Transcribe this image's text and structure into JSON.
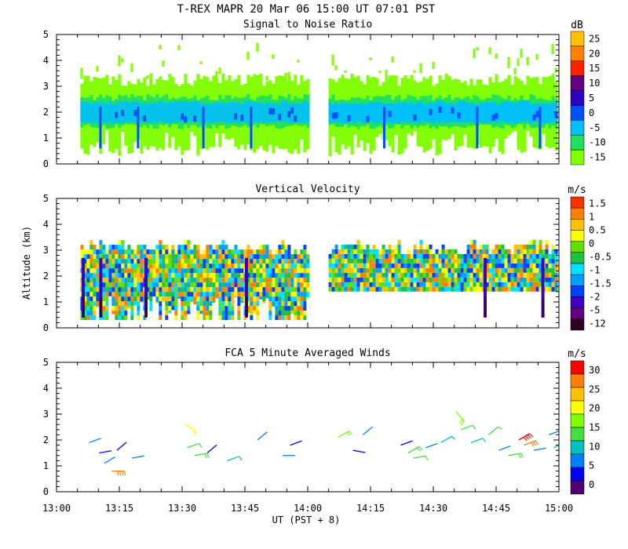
{
  "figure": {
    "title": "T-REX   MAPR 20 Mar 06   15:00 UT   07:01   PST",
    "xlabel": "UT  (PST + 8)",
    "ylabel": "Altitude (km)",
    "x_ticks": [
      "13:00",
      "13:15",
      "13:30",
      "13:45",
      "14:00",
      "14:15",
      "14:30",
      "14:45",
      "15:00"
    ],
    "x_range_hours": [
      13.0,
      15.0
    ],
    "y_ticks": [
      "0",
      "1",
      "2",
      "3",
      "4",
      "5"
    ],
    "y_range_km": [
      0,
      5
    ]
  },
  "colors": {
    "snr": [
      "#80ff00",
      "#20e060",
      "#00c0ff",
      "#0050ff",
      "#3000c0",
      "#600080",
      "#ff2000",
      "#ff8000",
      "#ffc000"
    ],
    "vv": [
      "#300020",
      "#600080",
      "#4000c0",
      "#0040ff",
      "#00a0ff",
      "#00e0ff",
      "#20c040",
      "#60e000",
      "#ffff00",
      "#ffc000",
      "#ff8000",
      "#ff3000"
    ],
    "wind": [
      "#500070",
      "#0000ff",
      "#0080ff",
      "#00c0c0",
      "#40e040",
      "#80ff00",
      "#ffff00",
      "#ffc000",
      "#ff8000",
      "#ff0000"
    ]
  },
  "chart_data": [
    {
      "type": "heatmap",
      "title": "Signal to Noise Ratio",
      "units": "dB",
      "xlim_hours": [
        13.0,
        15.0
      ],
      "ylim_km": [
        0,
        5
      ],
      "colorbar_labels": [
        "25",
        "20",
        "15",
        "10",
        "5",
        "0",
        "-5",
        "-10",
        "-15"
      ],
      "data_gap_hours": [
        14.0,
        14.083
      ],
      "layers": [
        {
          "alt_km_range": [
            0.3,
            3.4
          ],
          "value_db": -15
        },
        {
          "alt_km_range": [
            1.4,
            2.6
          ],
          "value_db": -10
        },
        {
          "alt_km_range": [
            1.6,
            2.4
          ],
          "value_db": -5
        },
        {
          "alt_km_range": [
            1.7,
            2.0
          ],
          "value_db": 0
        }
      ]
    },
    {
      "type": "heatmap",
      "title": "Vertical Velocity",
      "units": "m/s",
      "xlim_hours": [
        13.0,
        15.0
      ],
      "ylim_km": [
        0,
        5
      ],
      "colorbar_labels": [
        "1.5",
        "1",
        "0.5",
        "0",
        "-0.5",
        "-1",
        "-1.5",
        "-2",
        "-5",
        "-12"
      ],
      "data_gap_hours": [
        14.0,
        14.083
      ],
      "valid_alt_km_range": [
        0.3,
        3.2
      ],
      "downdraft_hours": [
        13.1,
        13.17,
        13.35,
        13.75,
        14.7,
        14.93
      ]
    },
    {
      "type": "scatter",
      "title": "FCA 5 Minute Averaged Winds",
      "units": "m/s",
      "xlim_hours": [
        13.0,
        15.0
      ],
      "ylim_km": [
        0,
        5
      ],
      "colorbar_labels": [
        "30",
        "25",
        "20",
        "15",
        "10",
        "5",
        "0"
      ],
      "barbs": [
        {
          "t": 13.13,
          "alt": 1.9,
          "dir": 250,
          "spd": 5
        },
        {
          "t": 13.17,
          "alt": 1.5,
          "dir": 260,
          "spd": 4
        },
        {
          "t": 13.19,
          "alt": 1.1,
          "dir": 240,
          "spd": 6
        },
        {
          "t": 13.22,
          "alt": 0.8,
          "dir": 270,
          "spd": 28
        },
        {
          "t": 13.24,
          "alt": 1.6,
          "dir": 230,
          "spd": 3
        },
        {
          "t": 13.3,
          "alt": 1.3,
          "dir": 260,
          "spd": 5
        },
        {
          "t": 13.51,
          "alt": 2.6,
          "dir": 300,
          "spd": 20
        },
        {
          "t": 13.52,
          "alt": 1.7,
          "dir": 250,
          "spd": 12
        },
        {
          "t": 13.55,
          "alt": 1.4,
          "dir": 260,
          "spd": 14
        },
        {
          "t": 13.6,
          "alt": 1.5,
          "dir": 230,
          "spd": 4
        },
        {
          "t": 13.68,
          "alt": 1.2,
          "dir": 250,
          "spd": 10
        },
        {
          "t": 13.8,
          "alt": 2.0,
          "dir": 230,
          "spd": 5
        },
        {
          "t": 13.9,
          "alt": 1.4,
          "dir": 270,
          "spd": 6
        },
        {
          "t": 13.93,
          "alt": 1.8,
          "dir": 250,
          "spd": 3
        },
        {
          "t": 14.12,
          "alt": 2.1,
          "dir": 240,
          "spd": 15
        },
        {
          "t": 14.18,
          "alt": 1.6,
          "dir": 280,
          "spd": 4
        },
        {
          "t": 14.22,
          "alt": 2.2,
          "dir": 230,
          "spd": 5
        },
        {
          "t": 14.37,
          "alt": 1.8,
          "dir": 250,
          "spd": 4
        },
        {
          "t": 14.4,
          "alt": 1.5,
          "dir": 240,
          "spd": 14
        },
        {
          "t": 14.42,
          "alt": 1.3,
          "dir": 260,
          "spd": 12
        },
        {
          "t": 14.47,
          "alt": 1.7,
          "dir": 250,
          "spd": 5
        },
        {
          "t": 14.53,
          "alt": 1.9,
          "dir": 240,
          "spd": 10
        },
        {
          "t": 14.59,
          "alt": 3.1,
          "dir": 320,
          "spd": 18
        },
        {
          "t": 14.61,
          "alt": 2.4,
          "dir": 250,
          "spd": 12
        },
        {
          "t": 14.65,
          "alt": 1.9,
          "dir": 250,
          "spd": 11
        },
        {
          "t": 14.72,
          "alt": 2.2,
          "dir": 230,
          "spd": 12
        },
        {
          "t": 14.76,
          "alt": 1.6,
          "dir": 250,
          "spd": 5
        },
        {
          "t": 14.8,
          "alt": 1.4,
          "dir": 260,
          "spd": 14
        },
        {
          "t": 14.84,
          "alt": 2.0,
          "dir": 240,
          "spd": 30
        },
        {
          "t": 14.86,
          "alt": 1.8,
          "dir": 250,
          "spd": 26
        },
        {
          "t": 14.9,
          "alt": 1.6,
          "dir": 260,
          "spd": 5
        },
        {
          "t": 14.96,
          "alt": 2.2,
          "dir": 250,
          "spd": 5
        },
        {
          "t": 14.98,
          "alt": 1.7,
          "dir": 240,
          "spd": 11
        }
      ]
    }
  ]
}
